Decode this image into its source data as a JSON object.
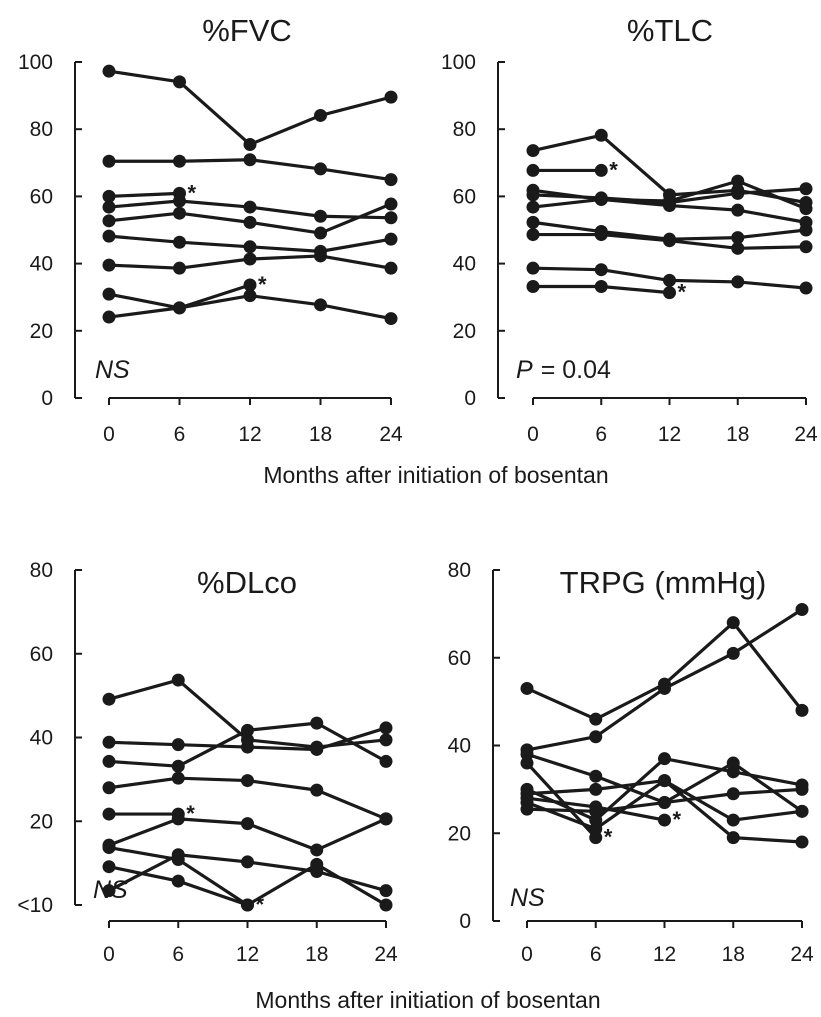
{
  "figure": {
    "caption_top": "Months after initiation of bosentan",
    "caption_bottom": "Months after initiation of bosentan"
  },
  "chart_data": [
    {
      "type": "line",
      "title": "%FVC",
      "annotation": "NS",
      "x": [
        0,
        6,
        12,
        18,
        24
      ],
      "xticks": [
        "0",
        "6",
        "12",
        "18",
        "24"
      ],
      "yticks": [
        "0",
        "20",
        "40",
        "60",
        "80",
        "100"
      ],
      "ylim": [
        0,
        110
      ],
      "series": [
        {
          "x": [
            0,
            6,
            12,
            18,
            24
          ],
          "values": [
            107,
            103.5,
            83,
            92.5,
            98.5
          ]
        },
        {
          "x": [
            0,
            6,
            12,
            18,
            24
          ],
          "values": [
            77.5,
            77.5,
            78,
            75,
            71.5
          ]
        },
        {
          "x": [
            0,
            6
          ],
          "values": [
            66,
            67
          ],
          "end_marker": "*"
        },
        {
          "x": [
            0,
            6,
            12,
            18,
            24
          ],
          "values": [
            62.5,
            64.5,
            62.5,
            59.5,
            59
          ]
        },
        {
          "x": [
            0,
            6,
            12,
            18,
            24
          ],
          "values": [
            58,
            60.5,
            57.5,
            54,
            63.5
          ]
        },
        {
          "x": [
            0,
            6,
            12,
            18,
            24
          ],
          "values": [
            53,
            51,
            49.5,
            48,
            52
          ]
        },
        {
          "x": [
            0,
            6,
            12,
            18,
            24
          ],
          "values": [
            43.5,
            42.5,
            45.5,
            46.5,
            42.5
          ]
        },
        {
          "x": [
            0,
            6,
            12
          ],
          "values": [
            34,
            29.5,
            37
          ],
          "end_marker": "*"
        },
        {
          "x": [
            0,
            6,
            12,
            18,
            24
          ],
          "values": [
            26.5,
            29.5,
            33.5,
            30.5,
            26
          ]
        }
      ]
    },
    {
      "type": "line",
      "title": "%TLC",
      "annotation_italic": "P",
      "annotation_value": "= 0.04",
      "x": [
        0,
        6,
        12,
        18,
        24
      ],
      "xticks": [
        "0",
        "6",
        "12",
        "18",
        "24"
      ],
      "yticks": [
        "0",
        "20",
        "40",
        "60",
        "80",
        "100"
      ],
      "ylim": [
        0,
        110
      ],
      "series": [
        {
          "x": [
            0,
            6,
            12,
            18,
            24
          ],
          "values": [
            81,
            86,
            66.5,
            68,
            64
          ]
        },
        {
          "x": [
            0,
            6
          ],
          "values": [
            74.5,
            74.5
          ],
          "end_marker": "*"
        },
        {
          "x": [
            0,
            6,
            12,
            18,
            24
          ],
          "values": [
            68,
            65,
            64.5,
            71,
            62
          ]
        },
        {
          "x": [
            0,
            6,
            12,
            18,
            24
          ],
          "values": [
            66.5,
            65.5,
            64,
            67,
            68.5
          ]
        },
        {
          "x": [
            0,
            6,
            12,
            18,
            24
          ],
          "values": [
            62.5,
            65,
            63,
            61.5,
            57.5
          ]
        },
        {
          "x": [
            0,
            6,
            12,
            18,
            24
          ],
          "values": [
            57.5,
            54.5,
            52,
            52.5,
            55
          ]
        },
        {
          "x": [
            0,
            6,
            12,
            18,
            24
          ],
          "values": [
            53.5,
            53.5,
            51.5,
            49,
            49.5
          ]
        },
        {
          "x": [
            0,
            6,
            12,
            18,
            24
          ],
          "values": [
            42.5,
            42,
            38.5,
            38,
            36
          ]
        },
        {
          "x": [
            0,
            6,
            12
          ],
          "values": [
            36.5,
            36.5,
            34.5
          ],
          "end_marker": "*"
        }
      ]
    },
    {
      "type": "line",
      "title": "%DLco",
      "annotation": "NS",
      "x": [
        0,
        6,
        12,
        18,
        24
      ],
      "xticks": [
        "0",
        "6",
        "12",
        "18",
        "24"
      ],
      "yticks": [
        "<10",
        "20",
        "40",
        "60",
        "80"
      ],
      "ylim": [
        10,
        80
      ],
      "series": [
        {
          "x": [
            0,
            6,
            12,
            18,
            24
          ],
          "values": [
            53,
            57,
            44.5,
            43,
            44.5
          ]
        },
        {
          "x": [
            0,
            6,
            12,
            18,
            24
          ],
          "values": [
            44,
            43.5,
            43,
            42.5,
            47
          ]
        },
        {
          "x": [
            0,
            6,
            12,
            18,
            24
          ],
          "values": [
            40,
            39,
            46.5,
            48,
            40
          ]
        },
        {
          "x": [
            0,
            6,
            12,
            18,
            24
          ],
          "values": [
            34.5,
            36.5,
            36,
            34,
            28
          ]
        },
        {
          "x": [
            0,
            6
          ],
          "values": [
            29,
            29
          ],
          "end_marker": "*"
        },
        {
          "x": [
            0,
            6,
            12,
            18,
            24
          ],
          "values": [
            22.5,
            28,
            27,
            21.5,
            28
          ]
        },
        {
          "x": [
            0,
            6,
            12
          ],
          "values": [
            22,
            19.5,
            10
          ],
          "end_marker": "*"
        },
        {
          "x": [
            0,
            6,
            12,
            18,
            24
          ],
          "values": [
            18,
            15,
            10,
            18.5,
            10
          ]
        },
        {
          "x": [
            0,
            6,
            12,
            18,
            24
          ],
          "values": [
            13,
            20.5,
            19,
            17,
            13
          ]
        }
      ]
    },
    {
      "type": "line",
      "title": "TRPG (mmHg)",
      "annotation": "NS",
      "x": [
        0,
        6,
        12,
        18,
        24
      ],
      "xticks": [
        "0",
        "6",
        "12",
        "18",
        "24"
      ],
      "yticks": [
        "0",
        "20",
        "40",
        "60",
        "80"
      ],
      "ylim": [
        0,
        80
      ],
      "series": [
        {
          "x": [
            0,
            6,
            12,
            18,
            24
          ],
          "values": [
            53,
            46,
            54,
            68,
            48
          ]
        },
        {
          "x": [
            0,
            6,
            12,
            18,
            24
          ],
          "values": [
            39,
            42,
            53,
            61,
            71
          ]
        },
        {
          "x": [
            0,
            6,
            12,
            18,
            24
          ],
          "values": [
            38,
            33,
            27,
            36,
            25
          ]
        },
        {
          "x": [
            0,
            6
          ],
          "values": [
            36,
            19
          ],
          "end_marker": "*"
        },
        {
          "x": [
            0,
            6,
            12,
            18,
            24
          ],
          "values": [
            30,
            23,
            37,
            34,
            31
          ]
        },
        {
          "x": [
            0,
            6,
            12,
            18,
            24
          ],
          "values": [
            29,
            30,
            32,
            23,
            25
          ]
        },
        {
          "x": [
            0,
            6,
            12
          ],
          "values": [
            28,
            26,
            23
          ],
          "end_marker": "*"
        },
        {
          "x": [
            0,
            6,
            12,
            18,
            24
          ],
          "values": [
            27,
            21,
            32,
            19,
            18
          ]
        },
        {
          "x": [
            0,
            6,
            12,
            18,
            24
          ],
          "values": [
            25.5,
            25,
            27,
            29,
            30
          ]
        }
      ]
    }
  ]
}
